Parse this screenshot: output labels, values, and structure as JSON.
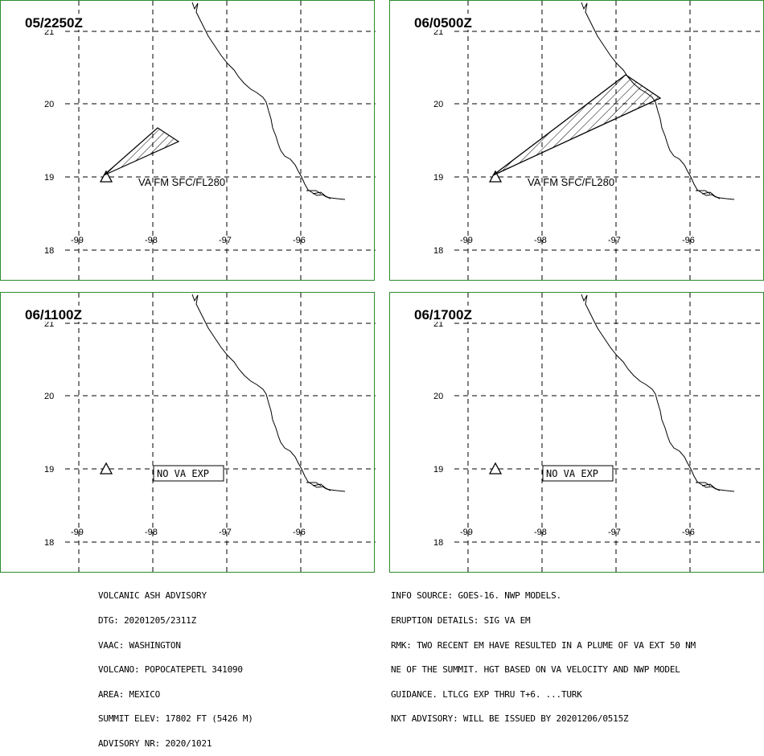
{
  "panels": [
    {
      "time": "05/2250Z",
      "va_label": "VA FM SFC/FL280",
      "no_va_exp": null,
      "plume": "small"
    },
    {
      "time": "06/0500Z",
      "va_label": "VA FM SFC/FL280",
      "no_va_exp": null,
      "plume": "large"
    },
    {
      "time": "06/1100Z",
      "va_label": null,
      "no_va_exp": "NO VA EXP",
      "plume": null
    },
    {
      "time": "06/1700Z",
      "va_label": null,
      "no_va_exp": "NO VA EXP",
      "plume": null
    }
  ],
  "grid": {
    "lat_labels": [
      "21",
      "20",
      "19",
      "18"
    ],
    "lon_labels": [
      "-99",
      "-98",
      "-97",
      "-96"
    ]
  },
  "advisory_left": [
    "VOLCANIC ASH ADVISORY",
    "DTG: 20201205/2311Z",
    "VAAC: WASHINGTON",
    "VOLCANO: POPOCATEPETL 341090",
    "AREA: MEXICO",
    "SUMMIT ELEV: 17802 FT (5426 M)",
    "ADVISORY NR: 2020/1021"
  ],
  "advisory_right": [
    "INFO SOURCE: GOES-16. NWP MODELS.",
    "ERUPTION DETAILS: SIG VA EM",
    "RMK: TWO RECENT EM HAVE RESULTED IN A PLUME OF VA EXT 50 NM",
    "NE OF THE SUMMIT. HGT BASED ON VA VELOCITY AND NWP MODEL",
    "GUIDANCE. LTLCG EXP THRU T+6. ...TURK",
    "NXT ADVISORY: WILL BE ISSUED BY 20201206/0515Z"
  ],
  "colors": {
    "panel_border": "#2e8b2e",
    "ink": "#000000"
  }
}
